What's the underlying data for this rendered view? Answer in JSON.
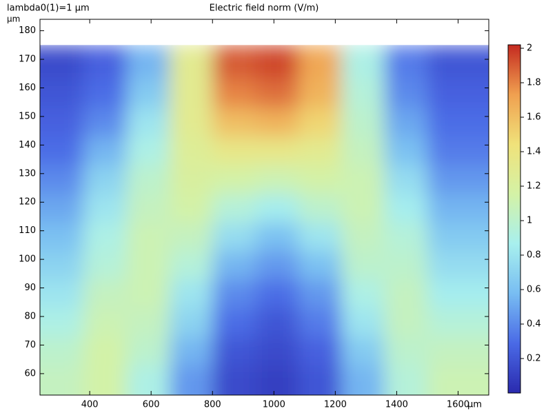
{
  "chart_data": {
    "type": "heatmap",
    "title": "Electric field norm (V/m)",
    "annotation": "lambda0(1)=1 µm",
    "xlabel": "µm",
    "ylabel": "µm",
    "xlim": [
      238,
      1700
    ],
    "ylim": [
      52.5,
      184
    ],
    "xticks": [
      400,
      600,
      800,
      1000,
      1200,
      1400,
      1600
    ],
    "yticks": [
      60,
      70,
      80,
      90,
      100,
      110,
      120,
      130,
      140,
      150,
      160,
      170,
      180
    ],
    "xbins": [
      238,
      380,
      520,
      660,
      800,
      940,
      1080,
      1220,
      1360,
      1500,
      1700
    ],
    "ybins": [
      52.5,
      63,
      73,
      83,
      93,
      103,
      113,
      123,
      133,
      143,
      153,
      163,
      175
    ],
    "z": [
      [
        1.05,
        1.15,
        0.9,
        0.45,
        0.15,
        0.1,
        0.2,
        0.55,
        0.95,
        1.1
      ],
      [
        1.0,
        1.15,
        1.0,
        0.55,
        0.2,
        0.15,
        0.25,
        0.65,
        1.0,
        1.05
      ],
      [
        0.9,
        1.1,
        1.05,
        0.7,
        0.3,
        0.2,
        0.35,
        0.8,
        1.05,
        0.95
      ],
      [
        0.8,
        1.05,
        1.1,
        0.8,
        0.4,
        0.3,
        0.45,
        0.9,
        1.05,
        0.85
      ],
      [
        0.7,
        0.95,
        1.1,
        0.95,
        0.55,
        0.45,
        0.6,
        1.0,
        1.0,
        0.75
      ],
      [
        0.6,
        0.9,
        1.1,
        1.05,
        0.75,
        0.6,
        0.8,
        1.05,
        0.95,
        0.65
      ],
      [
        0.5,
        0.8,
        1.05,
        1.15,
        0.95,
        0.85,
        1.0,
        1.1,
        0.85,
        0.55
      ],
      [
        0.4,
        0.7,
        1.0,
        1.2,
        1.15,
        1.1,
        1.15,
        1.1,
        0.75,
        0.45
      ],
      [
        0.3,
        0.55,
        0.9,
        1.25,
        1.35,
        1.35,
        1.3,
        1.05,
        0.6,
        0.35
      ],
      [
        0.25,
        0.4,
        0.8,
        1.3,
        1.6,
        1.65,
        1.5,
        1.0,
        0.5,
        0.3
      ],
      [
        0.2,
        0.3,
        0.65,
        1.3,
        1.8,
        1.85,
        1.65,
        0.95,
        0.4,
        0.25
      ],
      [
        0.15,
        0.25,
        0.55,
        1.3,
        1.9,
        1.95,
        1.7,
        0.9,
        0.35,
        0.2
      ]
    ],
    "clim": [
      0,
      2.02
    ],
    "cticks": [
      0.2,
      0.4,
      0.6,
      0.8,
      1,
      1.2,
      1.4,
      1.6,
      1.8,
      2
    ],
    "colormap": [
      "#2a2aae",
      "#4a6ae6",
      "#78bdf2",
      "#a8f0ee",
      "#d4f2a6",
      "#f0e27a",
      "#f0a050",
      "#c42a20"
    ]
  }
}
